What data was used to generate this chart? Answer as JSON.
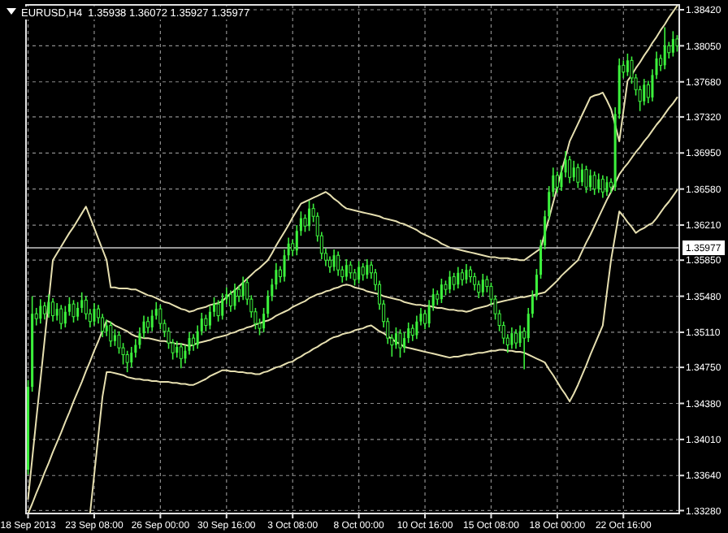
{
  "chart_data": {
    "type": "candlestick",
    "title": "EURUSD,H4  1.35938 1.36072 1.35927 1.35977",
    "color": "#3cf03c",
    "grid": true,
    "categories": [
      "18 Sep 2013",
      null,
      null,
      null,
      null,
      null,
      null,
      null,
      null,
      null,
      null,
      null,
      null,
      null,
      null,
      null,
      "23 Sep 08:00",
      null,
      null,
      null,
      null,
      null,
      null,
      null,
      null,
      null,
      null,
      null,
      null,
      null,
      null,
      null,
      "26 Sep 00:00",
      null,
      null,
      null,
      null,
      null,
      null,
      null,
      null,
      null,
      null,
      null,
      null,
      null,
      null,
      null,
      "30 Sep 16:00",
      null,
      null,
      null,
      null,
      null,
      null,
      null,
      null,
      null,
      null,
      null,
      null,
      null,
      null,
      null,
      "3 Oct 08:00",
      null,
      null,
      null,
      null,
      null,
      null,
      null,
      null,
      null,
      null,
      null,
      null,
      null,
      null,
      null,
      "8 Oct 00:00",
      null,
      null,
      null,
      null,
      null,
      null,
      null,
      null,
      null,
      null,
      null,
      null,
      null,
      null,
      null,
      "10 Oct 16:00",
      null,
      null,
      null,
      null,
      null,
      null,
      null,
      null,
      null,
      null,
      null,
      null,
      null,
      null,
      null,
      "15 Oct 08:00",
      null,
      null,
      null,
      null,
      null,
      null,
      null,
      null,
      null,
      null,
      null,
      null,
      null,
      null,
      null,
      "18 Oct 00:00",
      null,
      null,
      null,
      null,
      null,
      null,
      null,
      null,
      null,
      null,
      null,
      null,
      null,
      null,
      null,
      "22 Oct 16:00",
      null,
      null,
      null,
      null,
      null,
      null,
      null,
      null,
      null,
      null,
      null,
      null,
      null
    ],
    "ylim": [
      1.3325,
      1.3847
    ],
    "yticks": [
      {
        "value": 1.3328,
        "label": "1.33280"
      },
      {
        "value": 1.3364,
        "label": "1.33640"
      },
      {
        "value": 1.3401,
        "label": "1.34010"
      },
      {
        "value": 1.3438,
        "label": "1.34380"
      },
      {
        "value": 1.3475,
        "label": "1.34750"
      },
      {
        "value": 1.3511,
        "label": "1.35110"
      },
      {
        "value": 1.3548,
        "label": "1.35480"
      },
      {
        "value": 1.3585,
        "label": "1.35850"
      },
      {
        "value": 1.3621,
        "label": "1.36210"
      },
      {
        "value": 1.3658,
        "label": "1.36580"
      },
      {
        "value": 1.3695,
        "label": "1.36950"
      },
      {
        "value": 1.3732,
        "label": "1.37320"
      },
      {
        "value": 1.3768,
        "label": "1.37680"
      },
      {
        "value": 1.3805,
        "label": "1.38050"
      },
      {
        "value": 1.3842,
        "label": "1.38420"
      }
    ],
    "ref_lines": [
      {
        "axis": "y",
        "value": 1.35977,
        "label": "1.35977",
        "color": "#c8c8c8"
      }
    ],
    "ohlc": [
      [
        1.337,
        1.3462,
        1.3365,
        1.3455
      ],
      [
        1.3455,
        1.3548,
        1.345,
        1.353
      ],
      [
        1.353,
        1.3536,
        1.3518,
        1.3525
      ],
      [
        1.3525,
        1.3545,
        1.352,
        1.3538
      ],
      [
        1.3538,
        1.3542,
        1.3524,
        1.353
      ],
      [
        1.353,
        1.355,
        1.3526,
        1.3542
      ],
      [
        1.3542,
        1.3546,
        1.3522,
        1.3528
      ],
      [
        1.3528,
        1.3541,
        1.3523,
        1.3535
      ],
      [
        1.3535,
        1.3539,
        1.3514,
        1.352
      ],
      [
        1.352,
        1.3538,
        1.3516,
        1.3532
      ],
      [
        1.3532,
        1.3547,
        1.3528,
        1.354
      ],
      [
        1.354,
        1.3544,
        1.3521,
        1.3527
      ],
      [
        1.3527,
        1.3542,
        1.3523,
        1.3536
      ],
      [
        1.3536,
        1.3552,
        1.3531,
        1.3544
      ],
      [
        1.3544,
        1.3548,
        1.3524,
        1.353
      ],
      [
        1.353,
        1.3535,
        1.3516,
        1.3522
      ],
      [
        1.3522,
        1.3541,
        1.3518,
        1.3535
      ],
      [
        1.3535,
        1.3539,
        1.352,
        1.3526
      ],
      [
        1.3526,
        1.353,
        1.3506,
        1.3512
      ],
      [
        1.3512,
        1.3524,
        1.3507,
        1.3518
      ],
      [
        1.3518,
        1.3522,
        1.3496,
        1.3502
      ],
      [
        1.3502,
        1.3514,
        1.3497,
        1.3508
      ],
      [
        1.3508,
        1.3512,
        1.3489,
        1.3495
      ],
      [
        1.3495,
        1.35,
        1.3478,
        1.3488
      ],
      [
        1.3488,
        1.3492,
        1.347,
        1.348
      ],
      [
        1.348,
        1.3496,
        1.3475,
        1.349
      ],
      [
        1.349,
        1.3504,
        1.3485,
        1.3498
      ],
      [
        1.3498,
        1.3516,
        1.3494,
        1.351
      ],
      [
        1.351,
        1.3528,
        1.3505,
        1.3522
      ],
      [
        1.3522,
        1.3527,
        1.351,
        1.3516
      ],
      [
        1.3516,
        1.3534,
        1.3512,
        1.3528
      ],
      [
        1.3528,
        1.3542,
        1.3524,
        1.3535
      ],
      [
        1.3535,
        1.3539,
        1.3514,
        1.352
      ],
      [
        1.352,
        1.3524,
        1.3506,
        1.3512
      ],
      [
        1.3512,
        1.3516,
        1.3494,
        1.35
      ],
      [
        1.35,
        1.3504,
        1.3483,
        1.349
      ],
      [
        1.349,
        1.3502,
        1.3485,
        1.3496
      ],
      [
        1.3496,
        1.35,
        1.3474,
        1.3484
      ],
      [
        1.3484,
        1.3498,
        1.3479,
        1.3492
      ],
      [
        1.3492,
        1.3511,
        1.3488,
        1.3505
      ],
      [
        1.3505,
        1.3509,
        1.3492,
        1.3498
      ],
      [
        1.3498,
        1.3518,
        1.3494,
        1.3512
      ],
      [
        1.3512,
        1.3531,
        1.3508,
        1.3525
      ],
      [
        1.3525,
        1.3529,
        1.3512,
        1.3518
      ],
      [
        1.3518,
        1.3538,
        1.3514,
        1.3532
      ],
      [
        1.3532,
        1.3547,
        1.3527,
        1.354
      ],
      [
        1.354,
        1.3544,
        1.3522,
        1.3528
      ],
      [
        1.3528,
        1.3551,
        1.3524,
        1.3545
      ],
      [
        1.3545,
        1.3557,
        1.354,
        1.355
      ],
      [
        1.355,
        1.3554,
        1.3532,
        1.3538
      ],
      [
        1.3538,
        1.3561,
        1.3534,
        1.3555
      ],
      [
        1.3555,
        1.3559,
        1.3542,
        1.3548
      ],
      [
        1.3548,
        1.3568,
        1.3544,
        1.3562
      ],
      [
        1.3562,
        1.3566,
        1.3539,
        1.3545
      ],
      [
        1.3545,
        1.3549,
        1.3526,
        1.3532
      ],
      [
        1.3532,
        1.3536,
        1.3514,
        1.352
      ],
      [
        1.352,
        1.3525,
        1.3508,
        1.3515
      ],
      [
        1.3515,
        1.3536,
        1.3511,
        1.353
      ],
      [
        1.353,
        1.3554,
        1.3526,
        1.3548
      ],
      [
        1.3548,
        1.3566,
        1.3543,
        1.356
      ],
      [
        1.356,
        1.3582,
        1.3555,
        1.3575
      ],
      [
        1.3575,
        1.3579,
        1.3562,
        1.3568
      ],
      [
        1.3568,
        1.3596,
        1.3563,
        1.359
      ],
      [
        1.359,
        1.3608,
        1.3585,
        1.3602
      ],
      [
        1.3602,
        1.3606,
        1.3589,
        1.3595
      ],
      [
        1.3595,
        1.3621,
        1.359,
        1.3615
      ],
      [
        1.3615,
        1.3635,
        1.361,
        1.3628
      ],
      [
        1.3628,
        1.3632,
        1.3614,
        1.362
      ],
      [
        1.362,
        1.3646,
        1.3615,
        1.3638
      ],
      [
        1.3638,
        1.3643,
        1.3624,
        1.363
      ],
      [
        1.363,
        1.3634,
        1.3604,
        1.361
      ],
      [
        1.361,
        1.3614,
        1.3586,
        1.3592
      ],
      [
        1.3592,
        1.3597,
        1.3579,
        1.3585
      ],
      [
        1.3585,
        1.3589,
        1.3572,
        1.3578
      ],
      [
        1.3578,
        1.3596,
        1.3574,
        1.359
      ],
      [
        1.359,
        1.3594,
        1.3569,
        1.3575
      ],
      [
        1.3575,
        1.3579,
        1.3562,
        1.3568
      ],
      [
        1.3568,
        1.3586,
        1.3564,
        1.358
      ],
      [
        1.358,
        1.3584,
        1.3566,
        1.3572
      ],
      [
        1.3572,
        1.3576,
        1.3559,
        1.3565
      ],
      [
        1.3565,
        1.3584,
        1.3561,
        1.3578
      ],
      [
        1.3578,
        1.3582,
        1.3564,
        1.357
      ],
      [
        1.357,
        1.3586,
        1.3566,
        1.358
      ],
      [
        1.358,
        1.3584,
        1.3566,
        1.3572
      ],
      [
        1.3572,
        1.3576,
        1.3554,
        1.356
      ],
      [
        1.356,
        1.3564,
        1.3534,
        1.354
      ],
      [
        1.354,
        1.3544,
        1.3516,
        1.3522
      ],
      [
        1.3522,
        1.3526,
        1.3499,
        1.3505
      ],
      [
        1.3505,
        1.3509,
        1.3486,
        1.3498
      ],
      [
        1.3498,
        1.3516,
        1.3494,
        1.351
      ],
      [
        1.351,
        1.3514,
        1.3485,
        1.3495
      ],
      [
        1.3495,
        1.3511,
        1.349,
        1.3505
      ],
      [
        1.3505,
        1.3521,
        1.35,
        1.3515
      ],
      [
        1.3515,
        1.3519,
        1.3502,
        1.3508
      ],
      [
        1.3508,
        1.3528,
        1.3504,
        1.3522
      ],
      [
        1.3522,
        1.3536,
        1.3518,
        1.353
      ],
      [
        1.353,
        1.3534,
        1.3514,
        1.352
      ],
      [
        1.352,
        1.3544,
        1.3516,
        1.3538
      ],
      [
        1.3538,
        1.3556,
        1.3533,
        1.355
      ],
      [
        1.355,
        1.3554,
        1.3539,
        1.3545
      ],
      [
        1.3545,
        1.3566,
        1.3541,
        1.356
      ],
      [
        1.356,
        1.3564,
        1.3549,
        1.3555
      ],
      [
        1.3555,
        1.3574,
        1.3551,
        1.3568
      ],
      [
        1.3568,
        1.3572,
        1.3554,
        1.356
      ],
      [
        1.356,
        1.3578,
        1.3556,
        1.3572
      ],
      [
        1.3572,
        1.3576,
        1.3559,
        1.3565
      ],
      [
        1.3565,
        1.3581,
        1.3561,
        1.3575
      ],
      [
        1.3575,
        1.3579,
        1.3562,
        1.3568
      ],
      [
        1.3568,
        1.3572,
        1.3554,
        1.356
      ],
      [
        1.356,
        1.3564,
        1.3546,
        1.3552
      ],
      [
        1.3552,
        1.3571,
        1.3548,
        1.3565
      ],
      [
        1.3565,
        1.3569,
        1.3552,
        1.3558
      ],
      [
        1.3558,
        1.3562,
        1.3539,
        1.3545
      ],
      [
        1.3545,
        1.3549,
        1.3524,
        1.353
      ],
      [
        1.353,
        1.3534,
        1.3512,
        1.3518
      ],
      [
        1.3518,
        1.3522,
        1.3499,
        1.3505
      ],
      [
        1.3505,
        1.3509,
        1.349,
        1.3498
      ],
      [
        1.3498,
        1.3516,
        1.3494,
        1.351
      ],
      [
        1.351,
        1.3514,
        1.3494,
        1.35
      ],
      [
        1.35,
        1.3518,
        1.3496,
        1.3512
      ],
      [
        1.3512,
        1.3516,
        1.3473,
        1.3505
      ],
      [
        1.3505,
        1.3536,
        1.3501,
        1.353
      ],
      [
        1.353,
        1.3554,
        1.3526,
        1.3548
      ],
      [
        1.3548,
        1.3576,
        1.3544,
        1.357
      ],
      [
        1.357,
        1.3606,
        1.3566,
        1.36
      ],
      [
        1.36,
        1.3636,
        1.3596,
        1.363
      ],
      [
        1.363,
        1.3661,
        1.3626,
        1.3655
      ],
      [
        1.3655,
        1.368,
        1.365,
        1.3672
      ],
      [
        1.3672,
        1.3676,
        1.3654,
        1.366
      ],
      [
        1.366,
        1.3682,
        1.3656,
        1.3675
      ],
      [
        1.3675,
        1.3697,
        1.367,
        1.3688
      ],
      [
        1.3688,
        1.3692,
        1.3664,
        1.367
      ],
      [
        1.367,
        1.3687,
        1.3666,
        1.368
      ],
      [
        1.368,
        1.3684,
        1.3659,
        1.3665
      ],
      [
        1.3665,
        1.3684,
        1.3661,
        1.3678
      ],
      [
        1.3678,
        1.3682,
        1.3654,
        1.366
      ],
      [
        1.366,
        1.3678,
        1.3656,
        1.3672
      ],
      [
        1.3672,
        1.3676,
        1.3652,
        1.3658
      ],
      [
        1.3658,
        1.3674,
        1.3654,
        1.3668
      ],
      [
        1.3668,
        1.3672,
        1.3649,
        1.3655
      ],
      [
        1.3655,
        1.3671,
        1.3651,
        1.3665
      ],
      [
        1.3665,
        1.3669,
        1.3654,
        1.366
      ],
      [
        1.366,
        1.3742,
        1.3656,
        1.3735
      ],
      [
        1.3735,
        1.3792,
        1.373,
        1.3785
      ],
      [
        1.3785,
        1.379,
        1.3772,
        1.3778
      ],
      [
        1.3778,
        1.3797,
        1.3774,
        1.379
      ],
      [
        1.379,
        1.3794,
        1.3766,
        1.3772
      ],
      [
        1.3772,
        1.3776,
        1.3754,
        1.376
      ],
      [
        1.376,
        1.3764,
        1.3738,
        1.3748
      ],
      [
        1.3748,
        1.3771,
        1.3744,
        1.3765
      ],
      [
        1.3765,
        1.3769,
        1.3746,
        1.3752
      ],
      [
        1.3752,
        1.3781,
        1.3748,
        1.3775
      ],
      [
        1.3775,
        1.3799,
        1.3771,
        1.3792
      ],
      [
        1.3792,
        1.3796,
        1.3779,
        1.3785
      ],
      [
        1.3785,
        1.3824,
        1.3781,
        1.3805
      ],
      [
        1.3805,
        1.3809,
        1.3792,
        1.3798
      ],
      [
        1.3798,
        1.382,
        1.3794,
        1.3812
      ],
      [
        1.3812,
        1.3816,
        1.3799,
        1.3805
      ]
    ],
    "series": [
      {
        "type": "line",
        "color": "#e6dfb0",
        "values": [
          1.334,
          1.3381,
          1.3422,
          1.3462,
          1.3503,
          1.3544,
          1.3585,
          1.3592,
          1.3599,
          1.3606,
          1.3613,
          1.3619,
          1.3626,
          1.3633,
          1.364,
          1.3629,
          1.3618,
          1.3607,
          1.3596,
          1.3585,
          1.3557,
          1.3557,
          1.3556,
          1.3556,
          1.3556,
          1.3555,
          1.3555,
          1.3553,
          1.3551,
          1.3549,
          1.3548,
          1.3546,
          1.3544,
          1.3542,
          1.3541,
          1.3539,
          1.3537,
          1.3535,
          1.3534,
          1.3532,
          1.3533,
          1.3535,
          1.3536,
          1.3537,
          1.3539,
          1.354,
          1.3541,
          1.3543,
          1.3547,
          1.3551,
          1.3554,
          1.3558,
          1.3562,
          1.3566,
          1.357,
          1.3574,
          1.3577,
          1.3581,
          1.3585,
          1.3592,
          1.36,
          1.3607,
          1.3614,
          1.3621,
          1.3629,
          1.3636,
          1.3643,
          1.3645,
          1.3647,
          1.3649,
          1.3651,
          1.3653,
          1.3655,
          1.3652,
          1.3648,
          1.3645,
          1.3641,
          1.3638,
          1.3637,
          1.3636,
          1.3635,
          1.3634,
          1.3633,
          1.3632,
          1.3631,
          1.363,
          1.3628,
          1.3627,
          1.3626,
          1.3625,
          1.3623,
          1.3622,
          1.362,
          1.3618,
          1.3616,
          1.3613,
          1.3611,
          1.3609,
          1.3607,
          1.3605,
          1.3602,
          1.36,
          1.3598,
          1.3597,
          1.3596,
          1.3595,
          1.3594,
          1.3593,
          1.3592,
          1.3591,
          1.359,
          1.3589,
          1.3588,
          1.3588,
          1.3587,
          1.3587,
          1.3587,
          1.3586,
          1.3586,
          1.3585,
          1.3585,
          1.3588,
          1.3591,
          1.3594,
          1.3597,
          1.3613,
          1.3628,
          1.3644,
          1.366,
          1.3676,
          1.3691,
          1.3707,
          1.3716,
          1.3725,
          1.3734,
          1.3743,
          1.3752,
          1.3754,
          1.3755,
          1.3757,
          1.3749,
          1.374,
          1.3724,
          1.3707,
          1.3738,
          1.3769,
          1.3775,
          1.3782,
          1.3788,
          1.3795,
          1.3801,
          1.3808,
          1.3814,
          1.3821,
          1.3827,
          1.3834,
          1.384,
          1.3846
        ]
      },
      {
        "type": "line",
        "color": "#e6dfb0",
        "values": [
          1.3325,
          1.3335,
          1.3346,
          1.3356,
          1.3367,
          1.3377,
          1.3388,
          1.3398,
          1.3408,
          1.3419,
          1.3429,
          1.344,
          1.345,
          1.346,
          1.3471,
          1.3481,
          1.3492,
          1.3502,
          1.3513,
          1.3523,
          1.3521,
          1.3518,
          1.3516,
          1.3514,
          1.3512,
          1.3509,
          1.3507,
          1.3506,
          1.3505,
          1.3505,
          1.3504,
          1.3503,
          1.3502,
          1.3502,
          1.3501,
          1.35,
          1.3499,
          1.3499,
          1.3498,
          1.3497,
          1.3498,
          1.35,
          1.3501,
          1.3502,
          1.3503,
          1.3505,
          1.3506,
          1.3507,
          1.3508,
          1.351,
          1.3511,
          1.3513,
          1.3514,
          1.3516,
          1.3517,
          1.3519,
          1.352,
          1.3522,
          1.3523,
          1.3525,
          1.3528,
          1.353,
          1.3532,
          1.3534,
          1.3537,
          1.3539,
          1.3541,
          1.3543,
          1.3546,
          1.3548,
          1.355,
          1.3551,
          1.3553,
          1.3554,
          1.3556,
          1.3557,
          1.3559,
          1.356,
          1.3559,
          1.3557,
          1.3556,
          1.3555,
          1.3553,
          1.3552,
          1.3551,
          1.355,
          1.3548,
          1.3547,
          1.3546,
          1.3545,
          1.3544,
          1.3542,
          1.3541,
          1.354,
          1.3539,
          1.3539,
          1.3538,
          1.3538,
          1.3537,
          1.3536,
          1.3536,
          1.3535,
          1.3534,
          1.3534,
          1.3533,
          1.3533,
          1.3532,
          1.3533,
          1.3535,
          1.3536,
          1.3537,
          1.3538,
          1.354,
          1.3541,
          1.3542,
          1.3543,
          1.3544,
          1.3545,
          1.3546,
          1.3547,
          1.3547,
          1.3548,
          1.3549,
          1.355,
          1.3551,
          1.3552,
          1.3556,
          1.356,
          1.3564,
          1.3569,
          1.3573,
          1.3577,
          1.3581,
          1.3585,
          1.3594,
          1.3603,
          1.3611,
          1.362,
          1.3629,
          1.3638,
          1.3647,
          1.3655,
          1.3664,
          1.3673,
          1.3679,
          1.3684,
          1.369,
          1.3696,
          1.3701,
          1.3707,
          1.3712,
          1.3718,
          1.3724,
          1.3729,
          1.3735,
          1.3741,
          1.3746,
          1.3752
        ]
      },
      {
        "type": "line",
        "color": "#e6dfb0",
        "values": [
          null,
          null,
          null,
          null,
          null,
          null,
          null,
          null,
          null,
          null,
          null,
          null,
          null,
          null,
          null,
          1.3325,
          1.3365,
          1.3405,
          1.3445,
          1.347,
          1.347,
          1.3469,
          1.3468,
          1.3467,
          1.3465,
          1.3464,
          1.3463,
          1.3463,
          1.3462,
          1.3462,
          1.3461,
          1.3461,
          1.346,
          1.346,
          1.346,
          1.3459,
          1.3459,
          1.3458,
          1.3458,
          1.3457,
          1.3457,
          1.3459,
          1.3461,
          1.3463,
          1.3466,
          1.3468,
          1.347,
          1.3472,
          1.3472,
          1.3471,
          1.3471,
          1.347,
          1.347,
          1.3469,
          1.3469,
          1.3468,
          1.3468,
          1.347,
          1.3471,
          1.3473,
          1.3475,
          1.3476,
          1.3478,
          1.348,
          1.3481,
          1.3484,
          1.3486,
          1.3489,
          1.3491,
          1.3494,
          1.3496,
          1.3499,
          1.3501,
          1.3504,
          1.3506,
          1.3507,
          1.3509,
          1.351,
          1.3511,
          1.3513,
          1.3514,
          1.3515,
          1.3517,
          1.3518,
          1.3515,
          1.3512,
          1.351,
          1.3507,
          1.3504,
          1.3501,
          1.3499,
          1.3496,
          1.3495,
          1.3494,
          1.3493,
          1.3492,
          1.3491,
          1.349,
          1.3489,
          1.3488,
          1.3487,
          1.3486,
          1.3485,
          1.3486,
          1.3486,
          1.3487,
          1.3488,
          1.3488,
          1.3489,
          1.349,
          1.349,
          1.3491,
          1.3492,
          1.3492,
          1.3493,
          1.3493,
          1.3492,
          1.3492,
          1.3491,
          1.3491,
          1.349,
          1.3488,
          1.3486,
          1.3484,
          1.3482,
          1.348,
          1.3473,
          1.3467,
          1.346,
          1.3453,
          1.3447,
          1.344,
          1.3448,
          1.3457,
          1.3467,
          1.3477,
          1.3488,
          1.3498,
          1.3508,
          1.3518,
          1.3552,
          1.3585,
          1.361,
          1.3635,
          1.363,
          1.3624,
          1.3619,
          1.3613,
          1.3616,
          1.3618,
          1.3621,
          1.3623,
          1.3628,
          1.3634,
          1.364,
          1.3645,
          1.3651,
          1.3657
        ]
      }
    ]
  }
}
